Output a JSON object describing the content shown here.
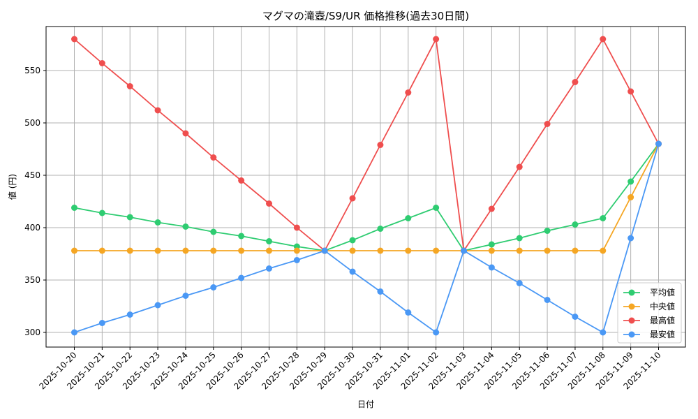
{
  "chart_data": {
    "type": "line",
    "title": "マグマの滝壺/S9/UR 価格推移(過去30日間)",
    "xlabel": "日付",
    "ylabel": "値 (円)",
    "ylim": [
      286,
      592
    ],
    "yticks": [
      300,
      350,
      400,
      450,
      500,
      550
    ],
    "grid": true,
    "legend_position": "lower-right",
    "categories": [
      "2025-10-20",
      "2025-10-21",
      "2025-10-22",
      "2025-10-23",
      "2025-10-24",
      "2025-10-25",
      "2025-10-26",
      "2025-10-27",
      "2025-10-28",
      "2025-10-29",
      "2025-10-30",
      "2025-10-31",
      "2025-11-01",
      "2025-11-02",
      "2025-11-03",
      "2025-11-04",
      "2025-11-05",
      "2025-11-06",
      "2025-11-07",
      "2025-11-08",
      "2025-11-09",
      "2025-11-10"
    ],
    "series": [
      {
        "name": "平均値",
        "color": "#2ecc71",
        "values": [
          419,
          414,
          410,
          405,
          401,
          396,
          392,
          387,
          382,
          378,
          388,
          399,
          409,
          419,
          378,
          384,
          390,
          397,
          403,
          409,
          444,
          480
        ]
      },
      {
        "name": "中央値",
        "color": "#f5a623",
        "values": [
          378,
          378,
          378,
          378,
          378,
          378,
          378,
          378,
          378,
          378,
          378,
          378,
          378,
          378,
          378,
          378,
          378,
          378,
          378,
          378,
          429,
          480
        ]
      },
      {
        "name": "最高値",
        "color": "#ef4e4e",
        "values": [
          580,
          557,
          535,
          512,
          490,
          467,
          445,
          423,
          400,
          378,
          428,
          479,
          529,
          580,
          378,
          418,
          458,
          499,
          539,
          580,
          530,
          480
        ]
      },
      {
        "name": "最安値",
        "color": "#4a98f5",
        "values": [
          300,
          309,
          317,
          326,
          335,
          343,
          352,
          361,
          369,
          378,
          358,
          339,
          319,
          300,
          378,
          362,
          347,
          331,
          315,
          300,
          390,
          480
        ]
      }
    ]
  }
}
